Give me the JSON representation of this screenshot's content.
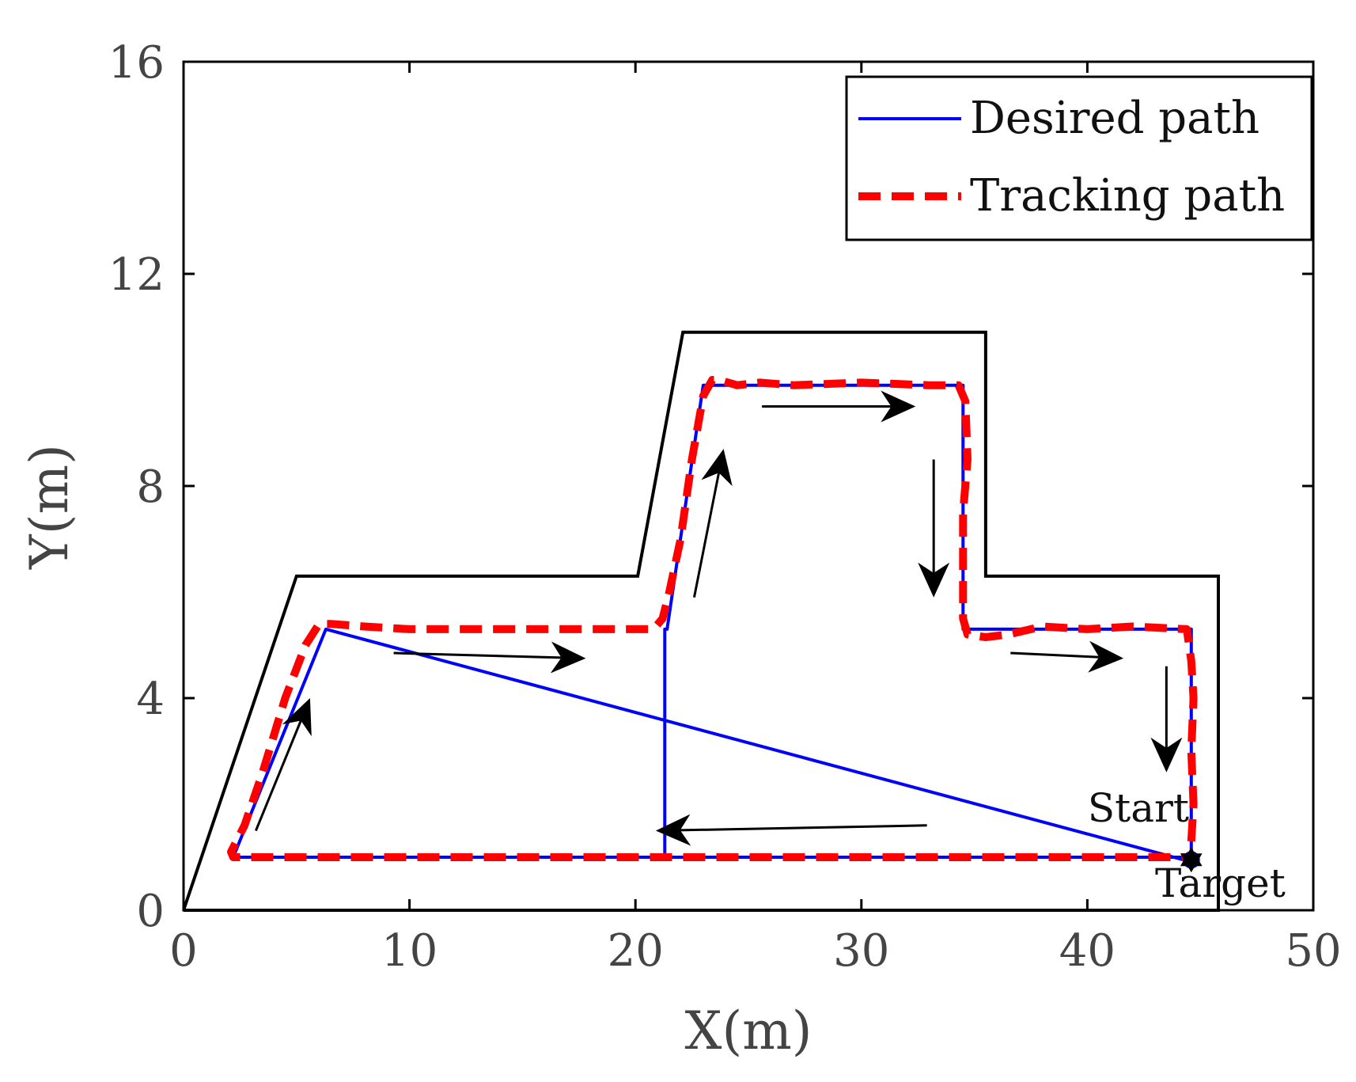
{
  "chart_data": {
    "type": "line",
    "title": "",
    "xlabel": "X(m)",
    "ylabel": "Y(m)",
    "xlim": [
      0,
      50
    ],
    "ylim": [
      0,
      16
    ],
    "xticks": [
      0,
      10,
      20,
      30,
      40,
      50
    ],
    "yticks": [
      0,
      4,
      8,
      12,
      16
    ],
    "grid": false,
    "legend_position": "top-right",
    "colors": {
      "desired": "#0000ff",
      "tracking": "#ff0000",
      "boundary": "#000000",
      "arrow": "#000000"
    },
    "series": [
      {
        "name": "Desired path",
        "style": "solid",
        "x": [
          44.6,
          44.6,
          21.3,
          21.3,
          21.4,
          23.0,
          23.0,
          34.5,
          34.5,
          34.6,
          44.6,
          44.6,
          44.7,
          6.3,
          6.3,
          2.2,
          2.2,
          44.6
        ],
        "y": [
          0.9,
          1.0,
          1.0,
          5.3,
          5.3,
          9.9,
          9.9,
          9.9,
          5.3,
          5.3,
          5.3,
          0.9,
          0.9,
          5.3,
          5.3,
          1.0,
          1.0,
          1.0
        ]
      },
      {
        "name": "Tracking path",
        "style": "dashed",
        "x": [
          44.6,
          44.7,
          44.6,
          44.7,
          44.6,
          44.4,
          42.0,
          40.0,
          38.0,
          36.5,
          35.5,
          34.7,
          34.5,
          34.5,
          34.5,
          34.7,
          34.6,
          34.3,
          33.0,
          30.0,
          27.0,
          25.5,
          24.5,
          23.7,
          23.4,
          23.0,
          22.5,
          22.0,
          21.5,
          21.2,
          20.8,
          18.0,
          14.0,
          10.0,
          8.0,
          6.5,
          6.0,
          5.4,
          4.5,
          3.5,
          2.7,
          2.1,
          2.2,
          3.5,
          10.0,
          20.0,
          30.0,
          40.0,
          43.5,
          44.6
        ],
        "y": [
          1.3,
          2.0,
          3.0,
          4.0,
          4.7,
          5.3,
          5.35,
          5.3,
          5.35,
          5.2,
          5.15,
          5.2,
          5.5,
          6.5,
          7.5,
          8.5,
          9.6,
          9.9,
          9.9,
          9.95,
          9.9,
          9.95,
          9.9,
          10.0,
          10.0,
          9.7,
          8.5,
          7.0,
          6.0,
          5.5,
          5.3,
          5.3,
          5.3,
          5.3,
          5.35,
          5.4,
          5.4,
          5.0,
          4.0,
          2.6,
          1.6,
          1.1,
          1.0,
          1.0,
          1.0,
          1.0,
          1.0,
          1.0,
          1.0,
          1.0
        ]
      }
    ],
    "boundary": {
      "x": [
        0,
        5.0,
        20.1,
        22.1,
        35.5,
        35.5,
        45.8,
        45.8,
        0
      ],
      "y": [
        0,
        6.3,
        6.3,
        10.9,
        10.9,
        6.3,
        6.3,
        0,
        0
      ]
    },
    "direction_arrows": [
      {
        "from": [
          3.2,
          1.5
        ],
        "to": [
          5.6,
          4.0
        ]
      },
      {
        "from": [
          9.3,
          4.85
        ],
        "to": [
          17.8,
          4.75
        ]
      },
      {
        "from": [
          22.6,
          5.9
        ],
        "to": [
          23.9,
          8.7
        ]
      },
      {
        "from": [
          25.6,
          9.5
        ],
        "to": [
          32.4,
          9.5
        ]
      },
      {
        "from": [
          33.2,
          8.5
        ],
        "to": [
          33.2,
          5.9
        ]
      },
      {
        "from": [
          36.6,
          4.85
        ],
        "to": [
          41.6,
          4.75
        ]
      },
      {
        "from": [
          43.5,
          4.6
        ],
        "to": [
          43.5,
          2.6
        ]
      },
      {
        "from": [
          32.9,
          1.6
        ],
        "to": [
          20.9,
          1.5
        ]
      }
    ],
    "markers": [
      {
        "name": "start",
        "x": 44.6,
        "y": 0.95,
        "label": "Start",
        "shape": "circle",
        "color": "#0000ff"
      },
      {
        "name": "target",
        "x": 44.6,
        "y": 0.95,
        "label": "Target",
        "shape": "hexagram",
        "color": "#000000"
      }
    ]
  }
}
